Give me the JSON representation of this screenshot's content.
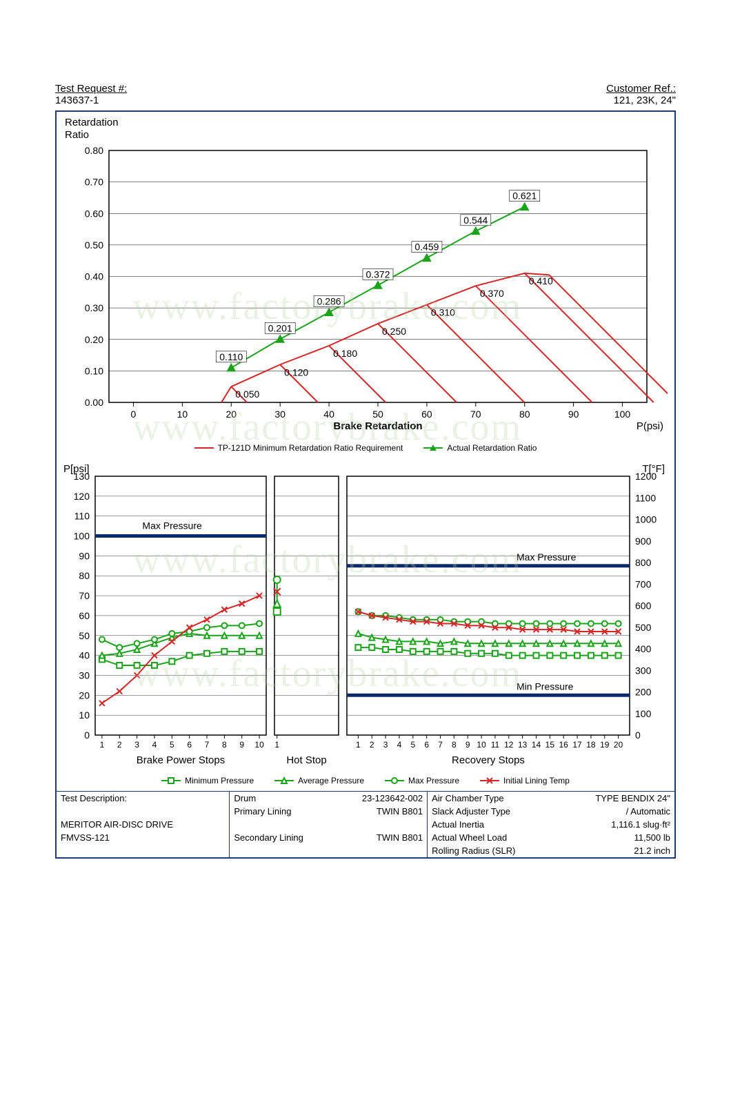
{
  "header": {
    "left_label": "Test Request #:",
    "left_value": "143637-1",
    "right_label": "Customer Ref.:",
    "right_value": "121, 23K, 24\""
  },
  "top_chart": {
    "y_title_l1": "Retardation",
    "y_title_l2": "Ratio",
    "x_title": "Brake Retardation",
    "x_unit_right": "P(psi)",
    "xlim": [
      -5,
      105
    ],
    "ylim": [
      0.0,
      0.8
    ],
    "yticks": [
      0.0,
      0.1,
      0.2,
      0.3,
      0.4,
      0.5,
      0.6,
      0.7,
      0.8
    ],
    "xticks": [
      0,
      10,
      20,
      30,
      40,
      50,
      60,
      70,
      80,
      90,
      100
    ],
    "grid_color": "#000000",
    "tp_color": "#d62728",
    "actual_color": "#19a319",
    "actual_points": [
      {
        "x": 20,
        "y": 0.11,
        "label": "0.110"
      },
      {
        "x": 30,
        "y": 0.201,
        "label": "0.201"
      },
      {
        "x": 40,
        "y": 0.286,
        "label": "0.286"
      },
      {
        "x": 50,
        "y": 0.372,
        "label": "0.372"
      },
      {
        "x": 60,
        "y": 0.459,
        "label": "0.459"
      },
      {
        "x": 70,
        "y": 0.544,
        "label": "0.544"
      },
      {
        "x": 80,
        "y": 0.621,
        "label": "0.621"
      }
    ],
    "tp_envelope_points": [
      {
        "x": 20,
        "y": 0.05,
        "label": "0.050"
      },
      {
        "x": 30,
        "y": 0.12,
        "label": "0.120"
      },
      {
        "x": 40,
        "y": 0.18,
        "label": "0.180"
      },
      {
        "x": 50,
        "y": 0.25,
        "label": "0.250"
      },
      {
        "x": 60,
        "y": 0.31,
        "label": "0.310"
      },
      {
        "x": 70,
        "y": 0.37,
        "label": "0.370"
      },
      {
        "x": 80,
        "y": 0.41,
        "label": "0.410"
      }
    ],
    "legend": [
      {
        "label": "TP-121D Minimum Retardation Ratio Requirement",
        "color": "#d62728",
        "marker": "line"
      },
      {
        "label": "Actual Retardation Ratio",
        "color": "#19a319",
        "marker": "triangle"
      }
    ]
  },
  "bottom": {
    "left_y_label": "P[psi]",
    "right_y_label": "T[°F]",
    "left_ylim": [
      0,
      130
    ],
    "left_yticks": [
      0,
      10,
      20,
      30,
      40,
      50,
      60,
      70,
      80,
      90,
      100,
      110,
      120,
      130
    ],
    "right_ylim": [
      0,
      1200
    ],
    "right_yticks": [
      0,
      100,
      200,
      300,
      400,
      500,
      600,
      700,
      800,
      900,
      1000,
      1100,
      1200
    ],
    "panel1": {
      "title": "Brake Power Stops",
      "x": [
        1,
        2,
        3,
        4,
        5,
        6,
        7,
        8,
        9,
        10
      ],
      "max_pressure_label": "Max Pressure",
      "max_pressure_y": 100,
      "max_pressure_color": "#0a2a6b",
      "series": {
        "min": {
          "color": "#19a319",
          "marker": "square",
          "y": [
            38,
            35,
            35,
            35,
            37,
            40,
            41,
            42,
            42,
            42
          ]
        },
        "avg": {
          "color": "#19a319",
          "marker": "triangle",
          "y": [
            40,
            41,
            43,
            46,
            49,
            51,
            50,
            50,
            50,
            50
          ]
        },
        "max": {
          "color": "#19a319",
          "marker": "circle",
          "y": [
            48,
            44,
            46,
            48,
            51,
            52,
            54,
            55,
            55,
            56
          ]
        },
        "temp": {
          "color": "#d62728",
          "marker": "x",
          "y": [
            16,
            22,
            30,
            40,
            47,
            54,
            58,
            63,
            66,
            70
          ]
        }
      }
    },
    "panel2": {
      "title": "Hot Stop",
      "x": [
        1
      ],
      "points": {
        "max": {
          "color": "#19a319",
          "marker": "circle",
          "y": 78
        },
        "temp": {
          "color": "#d62728",
          "marker": "x",
          "y": 72
        },
        "avg": {
          "color": "#19a319",
          "marker": "triangle",
          "y": 66
        },
        "min": {
          "color": "#19a319",
          "marker": "square",
          "y": 62
        }
      }
    },
    "panel3": {
      "title": "Recovery Stops",
      "x": [
        1,
        2,
        3,
        4,
        5,
        6,
        7,
        8,
        9,
        10,
        11,
        12,
        13,
        14,
        15,
        16,
        17,
        18,
        19,
        20
      ],
      "max_pressure_label": "Max Pressure",
      "max_pressure_y": 85,
      "min_pressure_label": "Min Pressure",
      "min_pressure_y": 20,
      "limit_color": "#0a2a6b",
      "series": {
        "temp": {
          "color": "#d62728",
          "marker": "x",
          "y": [
            62,
            60,
            59,
            58,
            57,
            57,
            56,
            56,
            55,
            55,
            54,
            54,
            53,
            53,
            53,
            53,
            52,
            52,
            52,
            52
          ]
        },
        "max": {
          "color": "#19a319",
          "marker": "circle",
          "y": [
            62,
            60,
            60,
            59,
            58,
            58,
            58,
            57,
            57,
            57,
            56,
            56,
            56,
            56,
            56,
            56,
            56,
            56,
            56,
            56
          ]
        },
        "avg": {
          "color": "#19a319",
          "marker": "triangle",
          "y": [
            51,
            49,
            48,
            47,
            47,
            47,
            46,
            47,
            46,
            46,
            46,
            46,
            46,
            46,
            46,
            46,
            46,
            46,
            46,
            46
          ]
        },
        "min": {
          "color": "#19a319",
          "marker": "square",
          "y": [
            44,
            44,
            43,
            43,
            42,
            42,
            42,
            42,
            41,
            41,
            41,
            40,
            40,
            40,
            40,
            40,
            40,
            40,
            40,
            40
          ]
        }
      }
    },
    "legend": [
      {
        "label": "Minimum Pressure",
        "color": "#19a319",
        "marker": "square"
      },
      {
        "label": "Average Pressure",
        "color": "#19a319",
        "marker": "triangle"
      },
      {
        "label": "Max Pressure",
        "color": "#19a319",
        "marker": "circle"
      },
      {
        "label": "Initial Lining Temp",
        "color": "#d62728",
        "marker": "x"
      }
    ]
  },
  "info": {
    "rows": [
      [
        [
          "Test Description:"
        ],
        [
          "Drum",
          "23-123642-002"
        ],
        [
          "Air Chamber Type",
          "TYPE  BENDIX 24\""
        ]
      ],
      [
        [
          ""
        ],
        [
          "Primary Lining",
          "TWIN B801"
        ],
        [
          "Slack Adjuster Type",
          "/ Automatic"
        ]
      ],
      [
        [
          "MERITOR AIR-DISC DRIVE"
        ],
        [
          "",
          ""
        ],
        [
          "Actual Inertia",
          "1,116.1 slug·ft²"
        ]
      ],
      [
        [
          "FMVSS-121"
        ],
        [
          "Secondary Lining",
          "TWIN B801"
        ],
        [
          "Actual Wheel Load",
          "11,500 lb"
        ]
      ],
      [
        [
          ""
        ],
        [
          "",
          ""
        ],
        [
          "Rolling Radius (SLR)",
          "21.2 inch"
        ]
      ]
    ]
  },
  "watermark_text": "www.factorybrake.com"
}
